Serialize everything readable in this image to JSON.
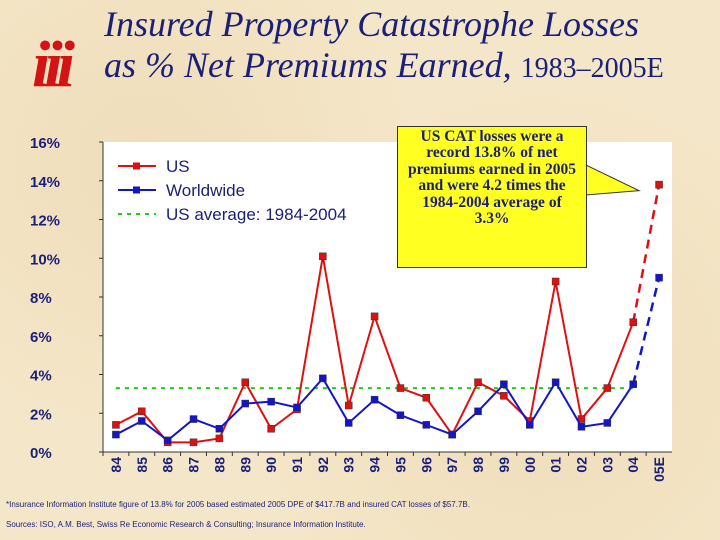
{
  "header": {
    "logo_text": "iii",
    "title_line1": "Insured Property Catastrophe Losses",
    "title_line2": "as % Net Premiums Earned,",
    "title_years": "1983–2005E"
  },
  "callout": {
    "text": "US CAT losses were a record 13.8% of net premiums earned in 2005 and were 4.2 times the 1984-2004 average of 3.3%"
  },
  "footnote": "*Insurance Information Institute figure of 13.8% for 2005 based estimated 2005 DPE of $417.7B and insured CAT losses of $57.7B.",
  "sources": "Sources: ISO, A.M. Best, Swiss Re Economic Research & Consulting; Insurance Information Institute.",
  "colors": {
    "us": "#e01010",
    "worldwide": "#1414c8",
    "average": "#22cc22",
    "axis_text": "#1a1f7a"
  },
  "chart_data": {
    "type": "line",
    "categories": [
      "84",
      "85",
      "86",
      "87",
      "88",
      "89",
      "90",
      "91",
      "92",
      "93",
      "94",
      "95",
      "96",
      "97",
      "98",
      "99",
      "00",
      "01",
      "02",
      "03",
      "04",
      "05E"
    ],
    "series": [
      {
        "name": "US",
        "values": [
          1.4,
          2.1,
          0.5,
          0.5,
          0.7,
          3.6,
          1.2,
          2.2,
          10.1,
          2.4,
          7.0,
          3.3,
          2.8,
          0.9,
          3.6,
          2.9,
          1.6,
          8.8,
          1.7,
          3.3,
          6.7,
          13.8
        ]
      },
      {
        "name": "Worldwide",
        "values": [
          0.9,
          1.6,
          0.6,
          1.7,
          1.2,
          2.5,
          2.6,
          2.3,
          3.8,
          1.5,
          2.7,
          1.9,
          1.4,
          0.9,
          2.1,
          3.5,
          1.4,
          3.6,
          1.3,
          1.5,
          3.5,
          9.0
        ]
      }
    ],
    "average": {
      "name": "US average: 1984-2004",
      "value": 3.3
    },
    "yticks": [
      "0%",
      "2%",
      "4%",
      "6%",
      "8%",
      "10%",
      "12%",
      "14%",
      "16%"
    ],
    "ylim": [
      0,
      16
    ],
    "grid": false,
    "legend_position": "top-left"
  }
}
